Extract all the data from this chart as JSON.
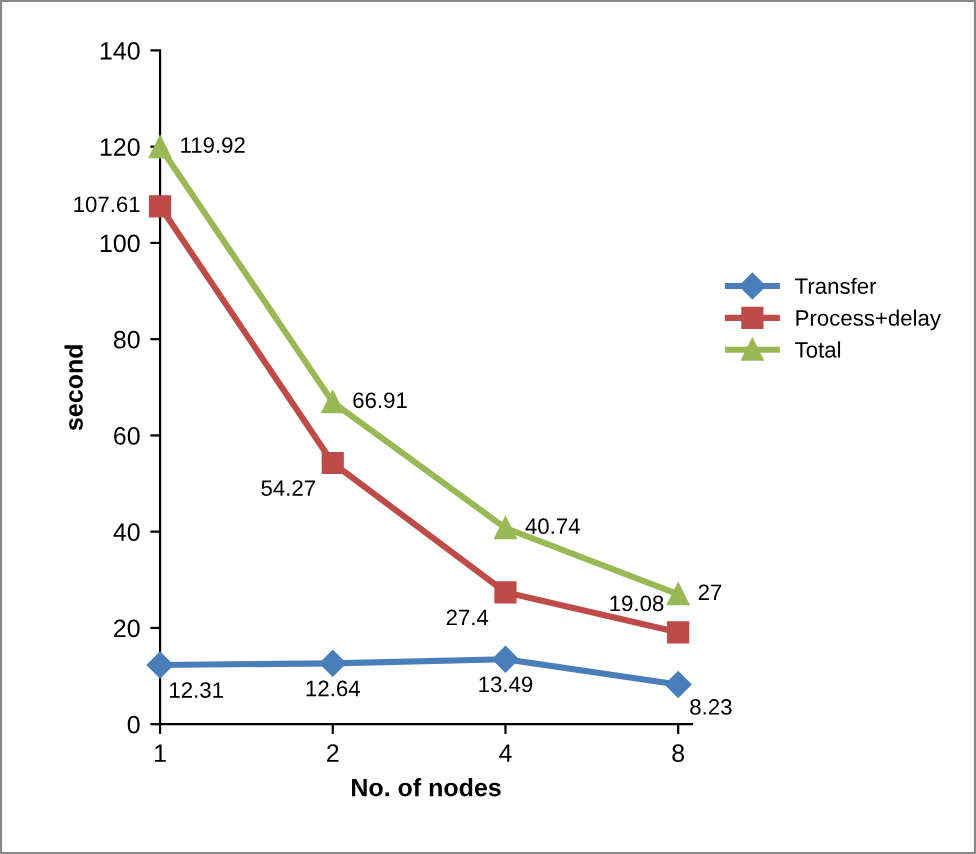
{
  "chart_data": {
    "type": "line",
    "xlabel": "No. of nodes",
    "ylabel": "second",
    "categories": [
      "1",
      "2",
      "4",
      "8"
    ],
    "series": [
      {
        "name": "Transfer",
        "color": "#4a7ebb",
        "marker": "diamond",
        "values": [
          12.31,
          12.64,
          13.49,
          8.23
        ]
      },
      {
        "name": "Process+delay",
        "color": "#be4b48",
        "marker": "square",
        "values": [
          107.61,
          54.27,
          27.4,
          19.08
        ]
      },
      {
        "name": "Total",
        "color": "#98b954",
        "marker": "triangle",
        "values": [
          119.92,
          66.91,
          40.74,
          27
        ]
      }
    ],
    "ylim": [
      0,
      140
    ],
    "yticks": [
      0,
      20,
      40,
      60,
      80,
      100,
      120,
      140
    ],
    "data_labels": true,
    "legend": "right",
    "grid": false
  }
}
